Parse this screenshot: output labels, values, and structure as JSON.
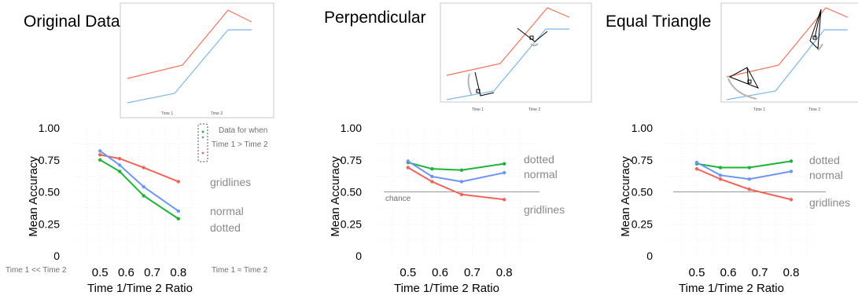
{
  "colors": {
    "normal": "#6d96f2",
    "dotted": "#1db33a",
    "gridlines": "#f0645a",
    "thumb_red": "#f2735c",
    "thumb_blue": "#7ab8ec"
  },
  "panels": [
    {
      "title": "Original Data",
      "thumb_ticks": [
        "Time 1",
        "Time 2"
      ]
    },
    {
      "title": "Perpendicular",
      "thumb_ticks": [
        "Time 1",
        "Time 2"
      ]
    },
    {
      "title": "Equal Triangle",
      "thumb_ticks": [
        "Time 1",
        "Time 2"
      ]
    }
  ],
  "legend_note": [
    "Data for when",
    "Time 1 > Time 2"
  ],
  "side_notes": {
    "left": "Time 1 << Time 2",
    "right": "Time 1 ≈ Time 2"
  },
  "chance_label": "chance",
  "chart_data": [
    {
      "type": "line",
      "x": [
        0.5,
        0.575,
        0.667,
        0.8
      ],
      "xticks": [
        "0.5",
        "0.6",
        "0.7",
        "0.8"
      ],
      "yticks": [
        "0",
        "0.25",
        "0.50",
        "0.75",
        "1.00"
      ],
      "xlabel": "Time 1/Time 2 Ratio",
      "ylabel": "Mean Accuracy",
      "ylim": [
        0,
        1
      ],
      "xlim": [
        0.4,
        0.9
      ],
      "grid": true,
      "series": [
        {
          "name": "gridlines",
          "values": [
            0.79,
            0.76,
            0.69,
            0.58
          ]
        },
        {
          "name": "normal",
          "values": [
            0.82,
            0.71,
            0.54,
            0.35
          ]
        },
        {
          "name": "dotted",
          "values": [
            0.75,
            0.66,
            0.47,
            0.29
          ]
        }
      ]
    },
    {
      "type": "line",
      "x": [
        0.5,
        0.575,
        0.667,
        0.8
      ],
      "xticks": [
        "0.5",
        "0.6",
        "0.7",
        "0.8"
      ],
      "yticks": [
        "0",
        "0.25",
        "0.50",
        "0.75",
        "1.00"
      ],
      "xlabel": "Time 1/Time 2 Ratio",
      "ylabel": "Mean Accuracy",
      "ylim": [
        0,
        1
      ],
      "xlim": [
        0.4,
        0.9
      ],
      "grid": true,
      "chance": 0.5,
      "series": [
        {
          "name": "dotted",
          "values": [
            0.73,
            0.68,
            0.67,
            0.72
          ]
        },
        {
          "name": "normal",
          "values": [
            0.74,
            0.62,
            0.58,
            0.65
          ]
        },
        {
          "name": "gridlines",
          "values": [
            0.69,
            0.58,
            0.48,
            0.44
          ]
        }
      ]
    },
    {
      "type": "line",
      "x": [
        0.5,
        0.575,
        0.667,
        0.8
      ],
      "xticks": [
        "0.5",
        "0.6",
        "0.7",
        "0.8"
      ],
      "yticks": [
        "0",
        "0.25",
        "0.50",
        "0.75",
        "1.00"
      ],
      "xlabel": "Time 1/Time 2 Ratio",
      "ylabel": "Mean Accuracy",
      "ylim": [
        0,
        1
      ],
      "xlim": [
        0.4,
        0.9
      ],
      "grid": true,
      "chance": 0.5,
      "series": [
        {
          "name": "dotted",
          "values": [
            0.72,
            0.69,
            0.69,
            0.74
          ]
        },
        {
          "name": "normal",
          "values": [
            0.73,
            0.63,
            0.6,
            0.66
          ]
        },
        {
          "name": "gridlines",
          "values": [
            0.68,
            0.6,
            0.52,
            0.44
          ]
        }
      ]
    }
  ]
}
